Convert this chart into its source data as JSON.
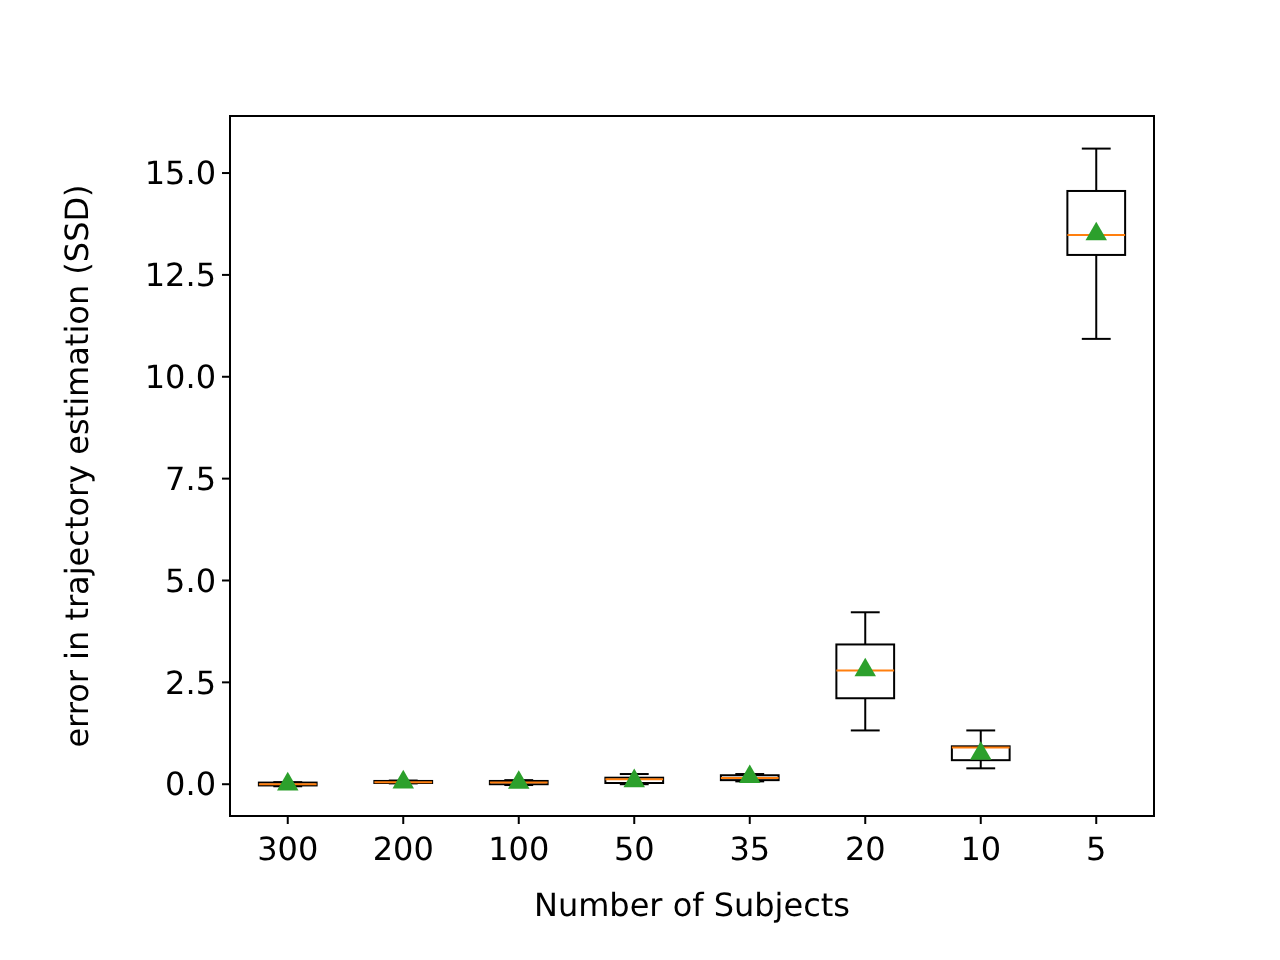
{
  "chart_data": {
    "type": "box",
    "xlabel": "Number of Subjects",
    "ylabel": "error in trajectory estimation (SSD)",
    "categories": [
      "300",
      "200",
      "100",
      "50",
      "35",
      "20",
      "10",
      "5"
    ],
    "boxes": [
      {
        "low": -0.05,
        "q1": -0.03,
        "median": 0.0,
        "q3": 0.04,
        "high": 0.05,
        "mean": 0.0
      },
      {
        "low": 0.02,
        "q1": 0.03,
        "median": 0.05,
        "q3": 0.08,
        "high": 0.09,
        "mean": 0.05
      },
      {
        "low": -0.02,
        "q1": 0.0,
        "median": 0.04,
        "q3": 0.08,
        "high": 0.1,
        "mean": 0.04
      },
      {
        "low": 0.0,
        "q1": 0.03,
        "median": 0.12,
        "q3": 0.16,
        "high": 0.25,
        "mean": 0.08
      },
      {
        "low": 0.07,
        "q1": 0.1,
        "median": 0.15,
        "q3": 0.22,
        "high": 0.25,
        "mean": 0.18
      },
      {
        "low": 1.32,
        "q1": 2.11,
        "median": 2.79,
        "q3": 3.43,
        "high": 4.22,
        "mean": 2.8
      },
      {
        "low": 0.39,
        "q1": 0.59,
        "median": 0.9,
        "q3": 0.93,
        "high": 1.32,
        "mean": 0.75
      },
      {
        "low": 10.93,
        "q1": 12.99,
        "median": 13.48,
        "q3": 14.56,
        "high": 15.6,
        "mean": 13.5
      }
    ],
    "color": "#000000",
    "marker": "triangle",
    "ylim": [
      -0.78,
      16.4
    ],
    "yticks": [
      {
        "value": 0,
        "label": "0.0"
      },
      {
        "value": 2.5,
        "label": "2.5"
      },
      {
        "value": 5,
        "label": "5.0"
      },
      {
        "value": 7.5,
        "label": "7.5"
      },
      {
        "value": 10,
        "label": "10.0"
      },
      {
        "value": 12.5,
        "label": "12.5"
      },
      {
        "value": 15,
        "label": "15.0"
      }
    ],
    "grid": false
  }
}
